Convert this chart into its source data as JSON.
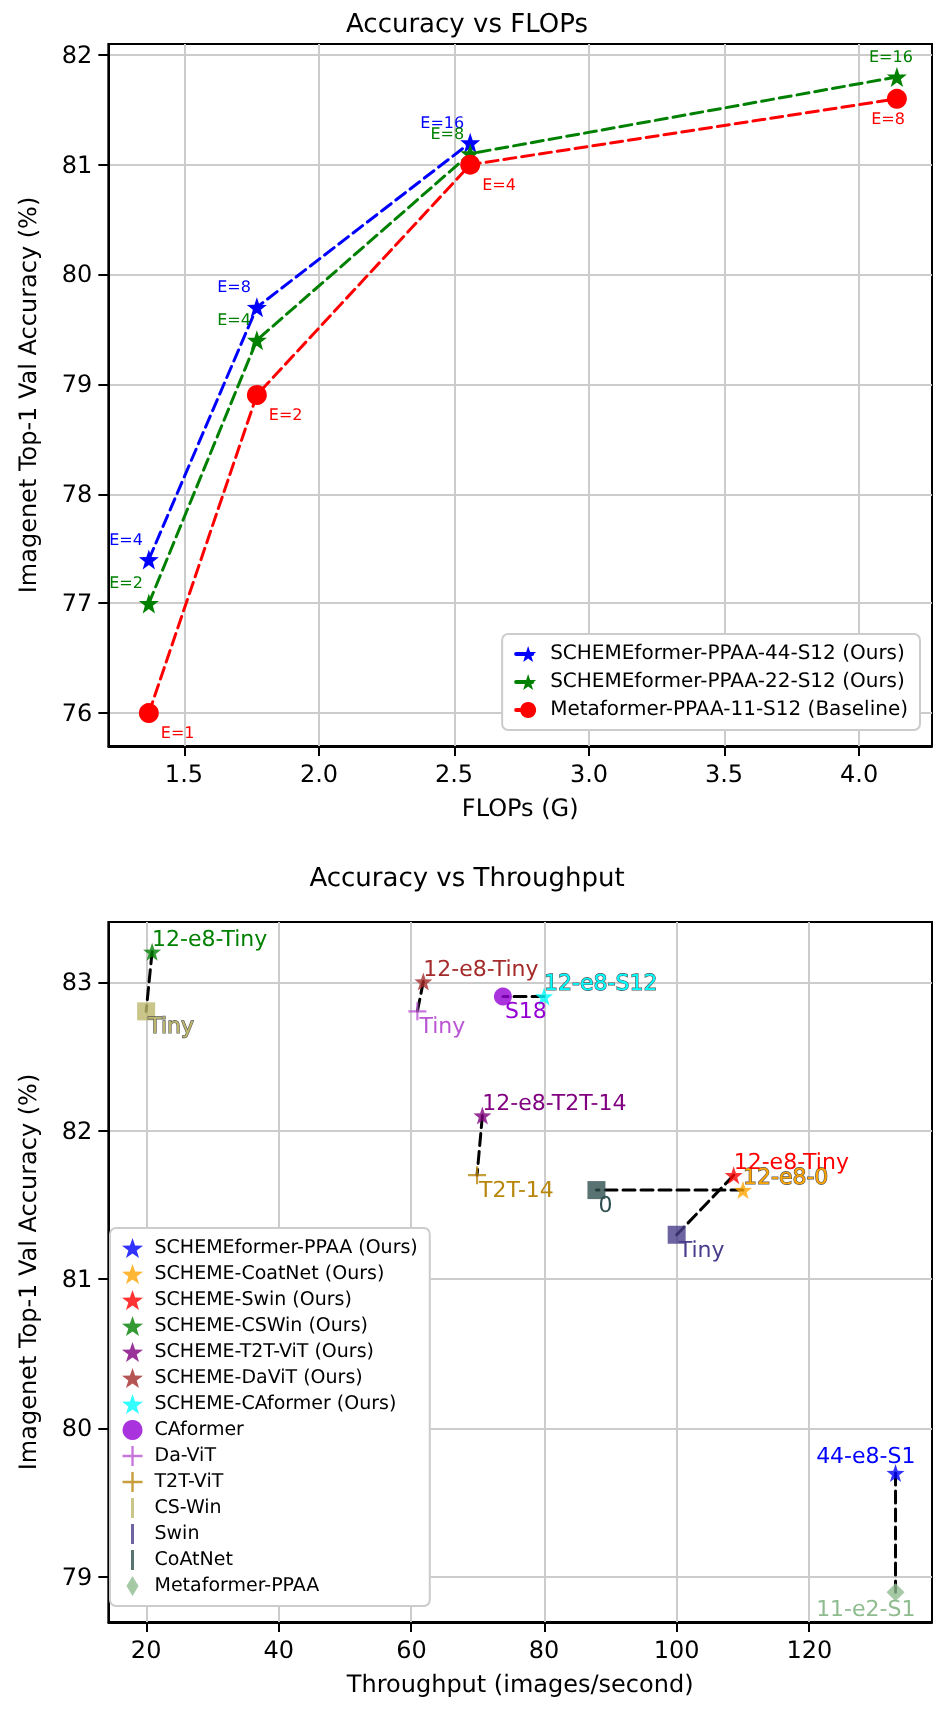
{
  "chart_data": [
    {
      "type": "line",
      "title": "Accuracy vs FLOPs",
      "xlabel": "FLOPs (G)",
      "ylabel": "Imagenet Top-1 Val Accuracy (%)",
      "xlim": [
        1.22,
        4.27
      ],
      "ylim": [
        75.7,
        82.1
      ],
      "xticks": [
        1.5,
        {
          "value": 2,
          "label": "2.0"
        },
        2.5,
        {
          "value": 3,
          "label": "3.0"
        },
        3.5,
        {
          "value": 4,
          "label": "4.0"
        }
      ],
      "yticks": [
        76,
        77,
        78,
        79,
        80,
        81,
        82
      ],
      "grid": true,
      "legend": "bottom right",
      "line_style": "dashed",
      "series": [
        {
          "name": "SCHEMEformer-PPAA-44-S12 (Ours)",
          "color": "#0000ff",
          "marker": "star",
          "x": [
            1.37,
            1.77,
            2.56
          ],
          "values": [
            77.4,
            79.7,
            81.2
          ]
        },
        {
          "name": "SCHEMEformer-PPAA-22-S12 (Ours)",
          "color": "#008000",
          "marker": "star",
          "x": [
            1.37,
            1.77,
            2.56,
            4.14
          ],
          "values": [
            77.0,
            79.4,
            81.1,
            81.8
          ]
        },
        {
          "name": "Metaformer-PPAA-11-S12 (Baseline)",
          "color": "#ff0000",
          "marker": "circle",
          "x": [
            1.37,
            1.77,
            2.56,
            4.14
          ],
          "values": [
            76.0,
            78.9,
            81.0,
            81.6
          ]
        }
      ],
      "annotations": [
        {
          "text": "E=4",
          "x": 1.37,
          "y": 77.4
        },
        {
          "text": "E=8",
          "x": 1.77,
          "y": 79.7
        },
        {
          "text": "E=16",
          "x": 2.56,
          "y": 81.2
        },
        {
          "text": "E=2",
          "x": 1.37,
          "y": 77.0
        },
        {
          "text": "E=4",
          "x": 1.77,
          "y": 79.4
        },
        {
          "text": "E=8",
          "x": 2.56,
          "y": 81.1
        },
        {
          "text": "E=16",
          "x": 4.14,
          "y": 81.8
        },
        {
          "text": "E=1",
          "x": 1.37,
          "y": 76.0
        },
        {
          "text": "E=2",
          "x": 1.77,
          "y": 78.9
        },
        {
          "text": "E=4",
          "x": 2.56,
          "y": 81.0
        },
        {
          "text": "E=8",
          "x": 4.14,
          "y": 81.6
        }
      ]
    },
    {
      "type": "scatter",
      "title": "Accuracy vs Throughput",
      "xlabel": "Throughput (images/second)",
      "ylabel": "Imagenet Top-1 Val Accuracy (%)",
      "xlim": [
        14.3,
        138.5
      ],
      "ylim": [
        78.7,
        83.4
      ],
      "xticks": [
        20,
        40,
        60,
        80,
        100,
        120
      ],
      "yticks": [
        79,
        80,
        81,
        82,
        83
      ],
      "grid": true,
      "legend": "bottom left",
      "series": [
        {
          "type": "line",
          "color": "#000000",
          "marker": "none",
          "line_style": "dashed",
          "x": [
            133,
            133
          ],
          "values": [
            79.7,
            78.9
          ]
        },
        {
          "type": "line",
          "color": "#000000",
          "marker": "none",
          "line_style": "dashed",
          "x": [
            110,
            87.9
          ],
          "values": [
            81.6,
            81.6
          ]
        },
        {
          "type": "line",
          "color": "#000000",
          "marker": "none",
          "line_style": "dashed",
          "x": [
            108.6,
            100
          ],
          "values": [
            81.7,
            81.3
          ]
        },
        {
          "type": "line",
          "color": "#000000",
          "marker": "none",
          "line_style": "dashed",
          "x": [
            20.9,
            20
          ],
          "values": [
            83.2,
            82.8
          ]
        },
        {
          "type": "line",
          "color": "#000000",
          "marker": "none",
          "line_style": "dashed",
          "x": [
            70.7,
            69.9
          ],
          "values": [
            82.1,
            81.7
          ]
        },
        {
          "type": "line",
          "color": "#000000",
          "marker": "none",
          "line_style": "dashed",
          "x": [
            61.8,
            60.9
          ],
          "values": [
            83.0,
            82.8
          ]
        },
        {
          "type": "line",
          "color": "#000000",
          "marker": "none",
          "line_style": "dashed",
          "x": [
            80,
            73.8
          ],
          "values": [
            82.9,
            82.9
          ]
        },
        {
          "name": "SCHEMEformer-PPAA (Ours)",
          "color": "#0000ff",
          "marker": "star",
          "x": [
            133
          ],
          "values": [
            79.7
          ]
        },
        {
          "name": "SCHEME-CoatNet (Ours)",
          "color": "#ffa500",
          "marker": "star",
          "x": [
            110
          ],
          "values": [
            81.6
          ]
        },
        {
          "name": "SCHEME-Swin (Ours)",
          "color": "#ff0000",
          "marker": "star",
          "x": [
            108.6
          ],
          "values": [
            81.7
          ]
        },
        {
          "name": "SCHEME-CSWin (Ours)",
          "color": "#008000",
          "marker": "star",
          "x": [
            20.9
          ],
          "values": [
            83.2
          ]
        },
        {
          "name": "SCHEME-T2T-ViT (Ours)",
          "color": "#800080",
          "marker": "star",
          "x": [
            70.7
          ],
          "values": [
            82.1
          ]
        },
        {
          "name": "SCHEME-DaViT (Ours)",
          "color": "#a52a2a",
          "marker": "star",
          "x": [
            61.8
          ],
          "values": [
            83.0
          ]
        },
        {
          "name": "SCHEME-CAformer (Ours)",
          "color": "#00ffff",
          "marker": "star",
          "x": [
            80
          ],
          "values": [
            82.9
          ]
        },
        {
          "name": "CAformer",
          "color": "#9400d3",
          "marker": "circle",
          "x": [
            73.8
          ],
          "values": [
            82.9
          ]
        },
        {
          "name": "Da-ViT",
          "color": "#ba55d3",
          "marker": "cross",
          "x": [
            60.9
          ],
          "values": [
            82.8
          ]
        },
        {
          "name": "T2T-ViT",
          "color": "#b8860b",
          "marker": "cross",
          "x": [
            69.9
          ],
          "values": [
            81.7
          ]
        },
        {
          "name": "CS-Win",
          "color": "#bdb76b",
          "x": [
            20
          ],
          "values": [
            82.8
          ]
        },
        {
          "name": "Swin",
          "color": "#483d8b",
          "x": [
            100
          ],
          "values": [
            81.3
          ]
        },
        {
          "name": "CoAtNet",
          "color": "#2f4f4f",
          "x": [
            87.9
          ],
          "values": [
            81.6
          ]
        },
        {
          "name": "Metaformer-PPAA",
          "color": "#8fbc8f",
          "marker": "diamond",
          "x": [
            133
          ],
          "values": [
            78.9
          ]
        }
      ],
      "annotations": [
        {
          "text": "44-e8-S1",
          "x": 133,
          "y": 79.7
        },
        {
          "text": "12-e8-0",
          "x": 110,
          "y": 81.6
        },
        {
          "text": "12-e8-Tiny",
          "x": 108.6,
          "y": 81.7
        },
        {
          "text": "12-e8-Tiny",
          "x": 20.9,
          "y": 83.2
        },
        {
          "text": "12-e8-T2T-14",
          "x": 70.7,
          "y": 82.1
        },
        {
          "text": "12-e8-Tiny",
          "x": 61.8,
          "y": 83.0
        },
        {
          "text": "12-e8-S12",
          "x": 80,
          "y": 82.9
        },
        {
          "text": "S18",
          "x": 73.8,
          "y": 82.9
        },
        {
          "text": "Tiny",
          "x": 60.9,
          "y": 82.8
        },
        {
          "text": "T2T-14",
          "x": 69.9,
          "y": 81.7
        },
        {
          "text": "Tiny",
          "x": 20,
          "y": 82.8
        },
        {
          "text": "Tiny",
          "x": 100,
          "y": 81.3
        },
        {
          "text": "0",
          "x": 87.9,
          "y": 81.6
        },
        {
          "text": "11-e2-S1",
          "x": 133,
          "y": 78.9
        }
      ]
    }
  ]
}
